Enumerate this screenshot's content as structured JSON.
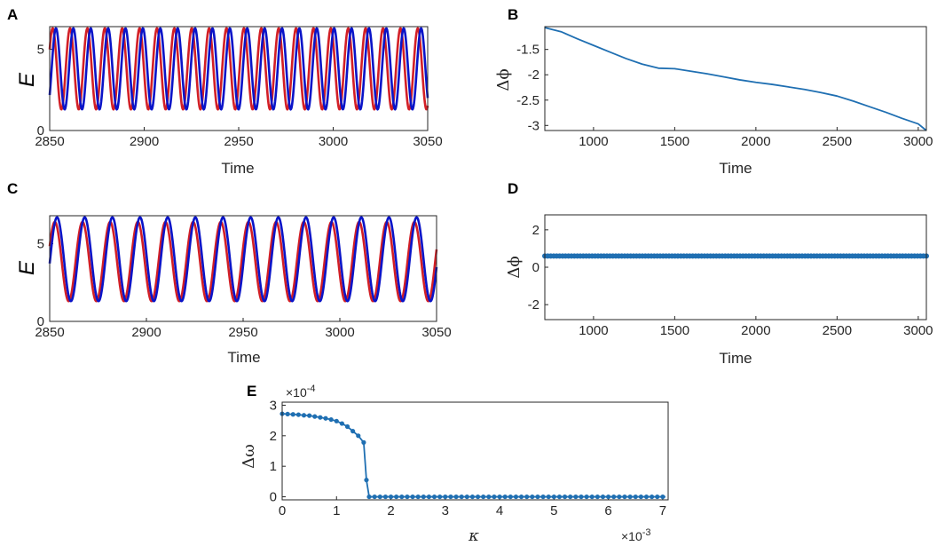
{
  "colors": {
    "red": "#d21f26",
    "blue": "#0a14c8",
    "series": "#1f6fb2",
    "axis": "#262626"
  },
  "chart_data": [
    {
      "id": "A",
      "panel_label": "A",
      "type": "line",
      "title": "",
      "xlabel": "Time",
      "ylabel": "E",
      "xlim": [
        2850,
        3050
      ],
      "ylim": [
        0,
        6.4
      ],
      "xticks": [
        "2850",
        "2900",
        "2950",
        "3000",
        "3050"
      ],
      "yticks": [
        "0",
        "5"
      ],
      "series": [
        {
          "name": "red",
          "color": "#d21f26",
          "period": 9.2,
          "phase": 0.5,
          "min": 1.3,
          "max": 6.3
        },
        {
          "name": "blue",
          "color": "#0a14c8",
          "period": 9.2,
          "phase": -0.7,
          "min": 1.3,
          "max": 6.3
        }
      ]
    },
    {
      "id": "B",
      "panel_label": "B",
      "type": "line",
      "title": "",
      "xlabel": "Time",
      "ylabel": "Δϕ",
      "xlim": [
        700,
        3050
      ],
      "ylim": [
        -3.1,
        -1.05
      ],
      "xticks": [
        "1000",
        "1500",
        "2000",
        "2500",
        "3000"
      ],
      "yticks": [
        "-1.5",
        "-2",
        "-2.5",
        "-3"
      ],
      "series": [
        {
          "name": "phase-difference",
          "color": "#1f6fb2",
          "x": [
            700,
            800,
            900,
            1000,
            1100,
            1200,
            1300,
            1400,
            1500,
            1600,
            1700,
            1800,
            1900,
            2000,
            2100,
            2200,
            2300,
            2400,
            2500,
            2600,
            2700,
            2800,
            2900,
            3000,
            3050
          ],
          "y": [
            -1.07,
            -1.15,
            -1.29,
            -1.42,
            -1.55,
            -1.68,
            -1.79,
            -1.87,
            -1.88,
            -1.93,
            -1.98,
            -2.04,
            -2.1,
            -2.15,
            -2.19,
            -2.24,
            -2.29,
            -2.35,
            -2.42,
            -2.52,
            -2.63,
            -2.74,
            -2.86,
            -2.97,
            -3.1
          ]
        }
      ]
    },
    {
      "id": "C",
      "panel_label": "C",
      "type": "line",
      "title": "",
      "xlabel": "Time",
      "ylabel": "E",
      "xlim": [
        2850,
        3050
      ],
      "ylim": [
        0,
        6.8
      ],
      "xticks": [
        "2850",
        "2900",
        "2950",
        "3000",
        "3050"
      ],
      "yticks": [
        "0",
        "5"
      ],
      "series": [
        {
          "name": "red",
          "color": "#d21f26",
          "period": 14.3,
          "phase": 0.4,
          "min": 1.3,
          "max": 6.4
        },
        {
          "name": "blue",
          "color": "#0a14c8",
          "period": 14.3,
          "phase": -0.1,
          "min": 1.3,
          "max": 6.7
        }
      ]
    },
    {
      "id": "D",
      "panel_label": "D",
      "type": "scatter",
      "title": "",
      "xlabel": "Time",
      "ylabel": "Δϕ",
      "xlim": [
        700,
        3050
      ],
      "ylim": [
        -2.8,
        2.8
      ],
      "xticks": [
        "1000",
        "1500",
        "2000",
        "2500",
        "3000"
      ],
      "yticks": [
        "2",
        "0",
        "-2"
      ],
      "series": [
        {
          "name": "phase-difference",
          "color": "#1f6fb2",
          "constant": 0.6,
          "x_start": 700,
          "x_end": 3050,
          "n_points": 130
        }
      ]
    },
    {
      "id": "E",
      "panel_label": "E",
      "type": "line",
      "title": "",
      "xlabel": "κ",
      "ylabel": "Δω",
      "x_exponent": "×10",
      "x_exponent_power": "-3",
      "y_exponent": "×10",
      "y_exponent_power": "-4",
      "xlim": [
        0,
        7.1
      ],
      "ylim": [
        -0.1,
        3.1
      ],
      "xticks": [
        "0",
        "1",
        "2",
        "3",
        "4",
        "5",
        "6",
        "7"
      ],
      "yticks": [
        "3",
        "2",
        "1",
        "0"
      ],
      "series": [
        {
          "name": "frequency-difference",
          "color": "#1f6fb2",
          "x": [
            0,
            0.1,
            0.2,
            0.3,
            0.4,
            0.5,
            0.6,
            0.7,
            0.8,
            0.9,
            1.0,
            1.1,
            1.2,
            1.3,
            1.4,
            1.5,
            1.55,
            1.6,
            7.05
          ],
          "y": [
            2.72,
            2.71,
            2.7,
            2.69,
            2.67,
            2.66,
            2.63,
            2.6,
            2.57,
            2.53,
            2.48,
            2.4,
            2.3,
            2.15,
            2.0,
            1.78,
            0.55,
            0.0,
            0.0
          ]
        }
      ]
    }
  ]
}
